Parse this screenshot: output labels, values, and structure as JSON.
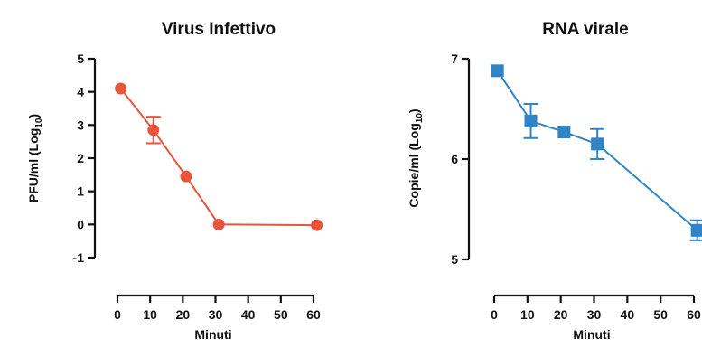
{
  "chart_data": [
    {
      "type": "line",
      "title": "Virus Infettivo",
      "xlabel": "Minuti",
      "ylabel_main": "PFU/ml (Log",
      "ylabel_sub": "10",
      "ylabel_end": ")",
      "x_ticks": [
        "0",
        "10",
        "20",
        "30",
        "40",
        "50",
        "60"
      ],
      "y_ticks": [
        "-1",
        "0",
        "1",
        "2",
        "3",
        "4",
        "5"
      ],
      "xlim": [
        0,
        60
      ],
      "ylim": [
        -1,
        5
      ],
      "color": "#e8543c",
      "marker": "circle",
      "series": [
        {
          "x": [
            1,
            11,
            21,
            31,
            61
          ],
          "y": [
            4.1,
            2.85,
            1.45,
            0.0,
            -0.02
          ],
          "error": [
            0.05,
            0.4,
            0.05,
            0.05,
            0.05
          ]
        }
      ]
    },
    {
      "type": "line",
      "title": "RNA virale",
      "xlabel": "Minuti",
      "ylabel_main": "Copie/ml (Log",
      "ylabel_sub": "10",
      "ylabel_end": ")",
      "x_ticks": [
        "0",
        "10",
        "20",
        "30",
        "40",
        "50",
        "60"
      ],
      "y_ticks": [
        "5",
        "6",
        "7"
      ],
      "xlim": [
        0,
        60
      ],
      "ylim": [
        5,
        7
      ],
      "color": "#2f84c8",
      "marker": "square",
      "series": [
        {
          "x": [
            1,
            11,
            21,
            31,
            61
          ],
          "y": [
            6.88,
            6.38,
            6.27,
            6.15,
            5.29
          ],
          "error": [
            0.04,
            0.17,
            0.04,
            0.15,
            0.1
          ]
        }
      ]
    }
  ]
}
